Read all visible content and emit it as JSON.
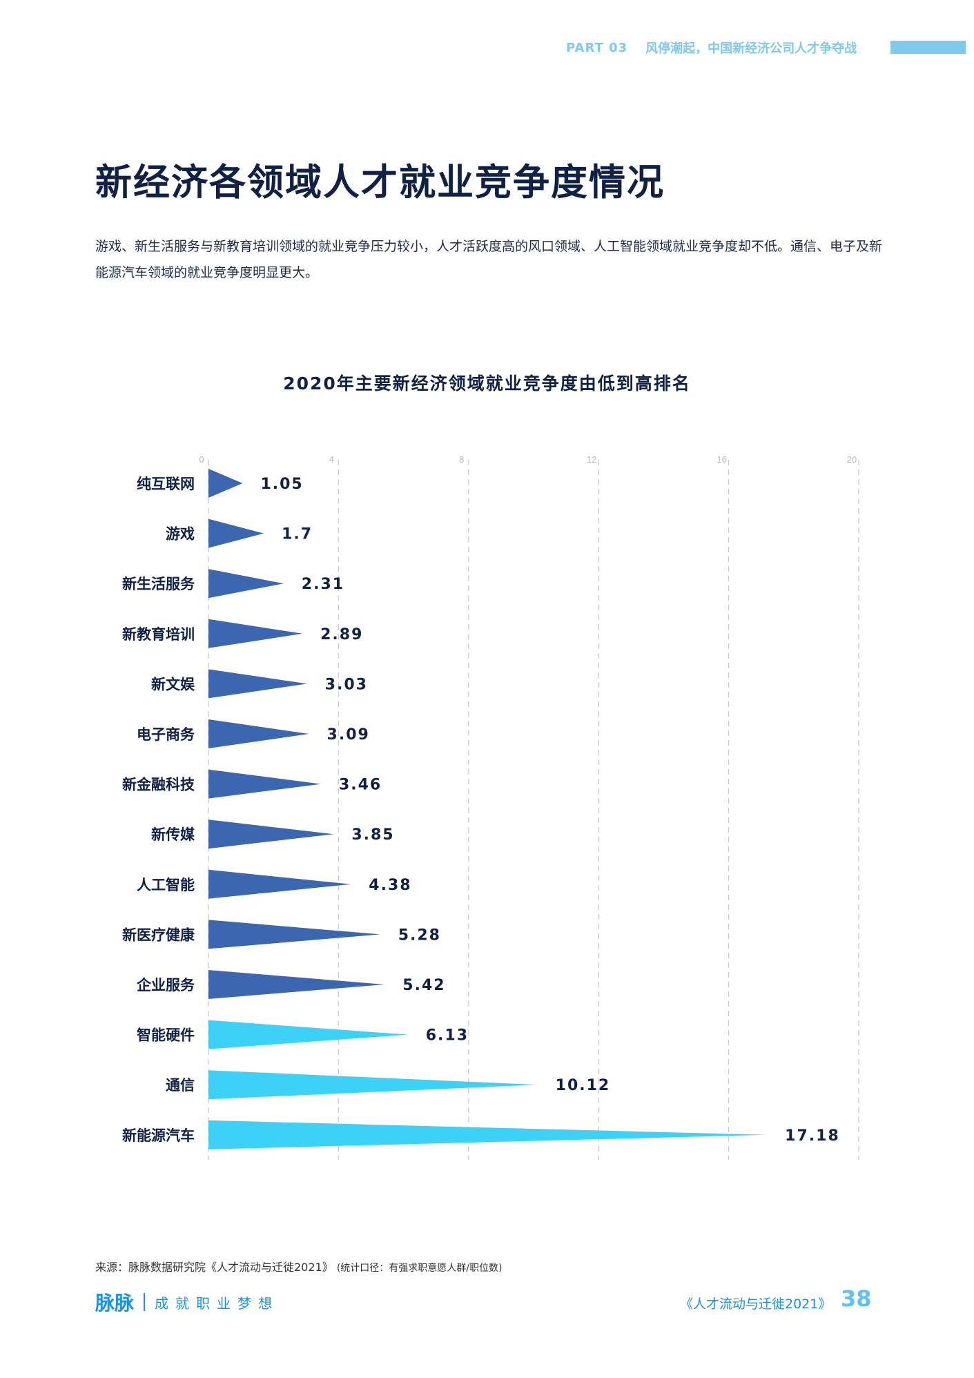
{
  "header": {
    "part": "PART 03",
    "section": "风停潮起，中国新经济公司人才争夺战"
  },
  "page_title": "新经济各领域人才就业竞争度情况",
  "intro": "游戏、新生活服务与新教育培训领域的就业竞争压力较小，人才活跃度高的风口领域、人工智能领域就业竞争度却不低。通信、电子及新能源汽车领域的就业竞争度明显更大。",
  "chart_data": {
    "type": "bar",
    "title": "2020年主要新经济领域就业竞争度由低到高排名",
    "categories": [
      "纯互联网",
      "游戏",
      "新生活服务",
      "新教育培训",
      "新文娱",
      "电子商务",
      "新金融科技",
      "新传媒",
      "人工智能",
      "新医疗健康",
      "企业服务",
      "智能硬件",
      "通信",
      "新能源汽车"
    ],
    "values": [
      1.05,
      1.7,
      2.31,
      2.89,
      3.03,
      3.09,
      3.46,
      3.85,
      4.38,
      5.28,
      5.42,
      6.13,
      10.12,
      17.18
    ],
    "value_labels": [
      "1.05",
      "1.7",
      "2.31",
      "2.89",
      "3.03",
      "3.09",
      "3.46",
      "3.85",
      "4.38",
      "5.28",
      "5.42",
      "6.13",
      "10.12",
      "17.18"
    ],
    "xticks": [
      0,
      4,
      8,
      12,
      16,
      20
    ],
    "xlim": [
      0,
      20
    ],
    "grid": true,
    "colors": [
      "#3b67b1",
      "#3b67b1",
      "#3b67b1",
      "#3b67b1",
      "#3b67b1",
      "#3b67b1",
      "#3b67b1",
      "#3b67b1",
      "#3b67b1",
      "#3b67b1",
      "#3b67b1",
      "#3cd2f7",
      "#3cd2f7",
      "#3cd2f7"
    ]
  },
  "source": {
    "text": "来源：脉脉数据研究院《人才流动与迁徙2021》",
    "note": "(统计口径：有强求职意愿人群/职位数)"
  },
  "footer": {
    "logo": "脉脉",
    "slogan": "成就职业梦想",
    "book": "《人才流动与迁徙2021》",
    "page": "38"
  }
}
